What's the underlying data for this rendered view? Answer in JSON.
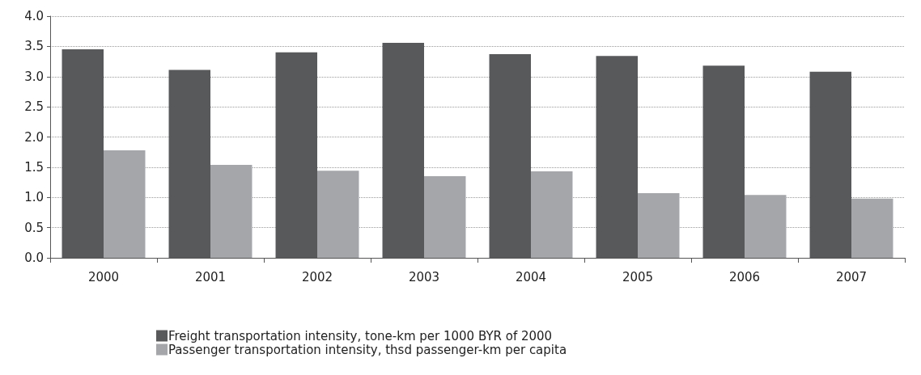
{
  "chart_data": {
    "type": "bar",
    "categories": [
      "2000",
      "2001",
      "2002",
      "2003",
      "2004",
      "2005",
      "2006",
      "2007"
    ],
    "series": [
      {
        "name": "Freight transportation intensity, tone-km per 1000 BYR of 2000",
        "color": "#58595b",
        "values": [
          3.45,
          3.11,
          3.4,
          3.56,
          3.37,
          3.34,
          3.18,
          3.08
        ]
      },
      {
        "name": "Passenger transportation intensity, thsd passenger-km per capita",
        "color": "#a5a6a9",
        "values": [
          1.78,
          1.54,
          1.44,
          1.35,
          1.43,
          1.07,
          1.04,
          0.98
        ]
      }
    ],
    "ylim": [
      0,
      4
    ],
    "yticks": [
      {
        "value": 0,
        "label": "0.0"
      },
      0.5,
      {
        "value": 1,
        "label": "1.0"
      },
      1.5,
      {
        "value": 2,
        "label": "2.0"
      },
      2.5,
      {
        "value": 3,
        "label": "3.0"
      },
      3.5,
      {
        "value": 4,
        "label": "4.0"
      }
    ],
    "grid": "y",
    "legend": "bottom"
  }
}
